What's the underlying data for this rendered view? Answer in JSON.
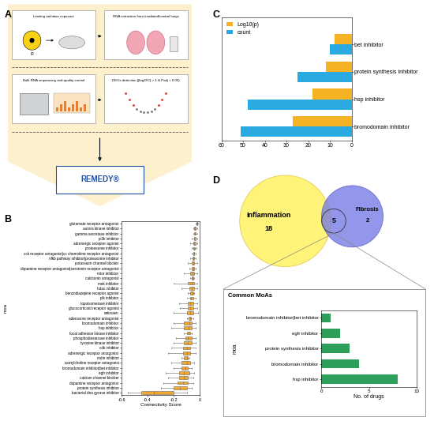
{
  "diagram": {
    "panel": "A",
    "steps": [
      {
        "label": "Limiting radiation exposure",
        "icon_label": "IR"
      },
      {
        "label": "RNA extraction from irradiated/control lungs"
      },
      {
        "label": "Bulk RNA sequencing and quality control"
      },
      {
        "label": "DEGs detection (|log2FC| > 1 & Padj < 0.05)"
      },
      {
        "label": "REMEDY®"
      }
    ]
  },
  "chart_data": [
    {
      "panel": "B",
      "type": "boxplot",
      "orientation": "horizontal",
      "x_label": "Connectivity Score",
      "y_label": "moa",
      "color": "#f0a830",
      "categories": [
        "glutamate receptor antagonist",
        "aurora kinase inhibitor",
        "gamma secretase inhibitor",
        "pi3k inhibitor",
        "adrenergic receptor agonist",
        "proteasome inhibitor",
        "cck receptor antagonist|cc chemokine receptor antagonist",
        "nfkb pathway inhibitor|proteasome inhibitor",
        "potassium channel blocker",
        "dopamine receptor antagonist|serotonin receptor antagonist",
        "mtor inhibitor",
        "calcitonin antagonist",
        "mek inhibitor",
        "hdac inhibitor",
        "benzodiazepine receptor agonist",
        "plk inhibitor",
        "topoisomerase inhibitor",
        "glucocorticoid receptor agonist",
        "unknown",
        "adenosine receptor antagonist",
        "bromodomain inhibitor",
        "hsp inhibitor",
        "focal adhesion kinase inhibitor",
        "phosphodiesterase inhibitor",
        "tyrosine kinase inhibitor",
        "cdk inhibitor",
        "adrenergic receptor antagonist",
        "mdm inhibitor",
        "acetylcholine receptor antagonist",
        "bromodomain inhibitor|bet inhibitor",
        "egfr inhibitor",
        "calcium channel blocker",
        "dopamine receptor antagonist",
        "protein synthesis inhibitor",
        "bacterial dna gyrase inhibitor"
      ],
      "whislo": [
        -0.03,
        -0.05,
        -0.05,
        -0.06,
        -0.07,
        -0.06,
        -0.06,
        -0.07,
        -0.09,
        -0.08,
        -0.12,
        -0.07,
        -0.2,
        -0.14,
        -0.09,
        -0.1,
        -0.16,
        -0.15,
        -0.2,
        -0.1,
        -0.2,
        -0.22,
        -0.12,
        -0.18,
        -0.2,
        -0.22,
        -0.24,
        -0.14,
        -0.22,
        -0.2,
        -0.26,
        -0.24,
        -0.28,
        -0.3,
        -0.55
      ],
      "q1": [
        -0.025,
        -0.04,
        -0.04,
        -0.045,
        -0.05,
        -0.05,
        -0.05,
        -0.055,
        -0.06,
        -0.06,
        -0.07,
        -0.06,
        -0.09,
        -0.08,
        -0.07,
        -0.075,
        -0.09,
        -0.09,
        -0.1,
        -0.085,
        -0.12,
        -0.12,
        -0.1,
        -0.11,
        -0.12,
        -0.13,
        -0.13,
        -0.12,
        -0.14,
        -0.14,
        -0.16,
        -0.16,
        -0.17,
        -0.2,
        -0.45
      ],
      "median": [
        -0.02,
        -0.035,
        -0.035,
        -0.04,
        -0.04,
        -0.045,
        -0.045,
        -0.05,
        -0.05,
        -0.05,
        -0.055,
        -0.055,
        -0.06,
        -0.06,
        -0.06,
        -0.065,
        -0.07,
        -0.07,
        -0.075,
        -0.075,
        -0.08,
        -0.085,
        -0.085,
        -0.09,
        -0.09,
        -0.095,
        -0.1,
        -0.1,
        -0.1,
        -0.11,
        -0.12,
        -0.12,
        -0.13,
        -0.15,
        -0.35
      ],
      "q3": [
        -0.018,
        -0.03,
        -0.03,
        -0.03,
        -0.03,
        -0.035,
        -0.04,
        -0.04,
        -0.04,
        -0.045,
        -0.04,
        -0.05,
        -0.04,
        -0.045,
        -0.05,
        -0.05,
        -0.05,
        -0.05,
        -0.05,
        -0.065,
        -0.06,
        -0.06,
        -0.07,
        -0.06,
        -0.06,
        -0.07,
        -0.07,
        -0.09,
        -0.07,
        -0.09,
        -0.08,
        -0.09,
        -0.09,
        -0.1,
        -0.2
      ],
      "whishi": [
        -0.015,
        -0.02,
        -0.02,
        -0.02,
        -0.02,
        -0.025,
        -0.03,
        -0.03,
        -0.02,
        -0.03,
        -0.02,
        -0.045,
        -0.02,
        -0.02,
        -0.04,
        -0.03,
        -0.02,
        -0.02,
        -0.01,
        -0.05,
        -0.03,
        -0.03,
        -0.06,
        -0.03,
        -0.03,
        -0.03,
        -0.03,
        -0.08,
        -0.04,
        -0.06,
        -0.04,
        -0.05,
        -0.05,
        -0.06,
        -0.1
      ],
      "xlim": [
        -0.6,
        0
      ],
      "xticks": [
        -0.6,
        -0.4,
        -0.2,
        0
      ]
    },
    {
      "panel": "C",
      "type": "bar",
      "orientation": "horizontal",
      "legend": "upper left",
      "categories": [
        "bet inhibitor",
        "protein synthesis inhibitor",
        "hsp inhibitor",
        "bromodomain inhibitor"
      ],
      "series": [
        {
          "name": "Log10(p)",
          "color": "#f5b324",
          "values": [
            8,
            12,
            18,
            27
          ]
        },
        {
          "name": "count",
          "color": "#29abe2",
          "values": [
            10,
            25,
            48,
            51
          ]
        }
      ],
      "xlim": [
        60,
        0
      ],
      "xticks": [
        60,
        50,
        40,
        30,
        20,
        10,
        0
      ]
    },
    {
      "panel": "D",
      "type": "bar",
      "orientation": "horizontal",
      "title": "Common MoAs",
      "x_label": "No. of drugs",
      "y_label": "moa",
      "color": "#2e9e5b",
      "categories": [
        "bromodomain inhibitor|bet inhibitor",
        "egfr inhibitor",
        "protein synthesis inhibitor",
        "bromodomain inhibitor",
        "hsp inhibitor"
      ],
      "values": [
        1,
        2,
        3,
        4,
        8
      ],
      "xlim": [
        0,
        10
      ],
      "xticks": [
        0,
        5,
        10
      ]
    }
  ],
  "venn": {
    "panel": "D",
    "sets": [
      {
        "name": "Inflammation",
        "count": 18,
        "color": "#fff36b"
      },
      {
        "name": "Fibrosis",
        "count": 2,
        "color": "#6f74e6"
      }
    ],
    "overlap": 5
  }
}
